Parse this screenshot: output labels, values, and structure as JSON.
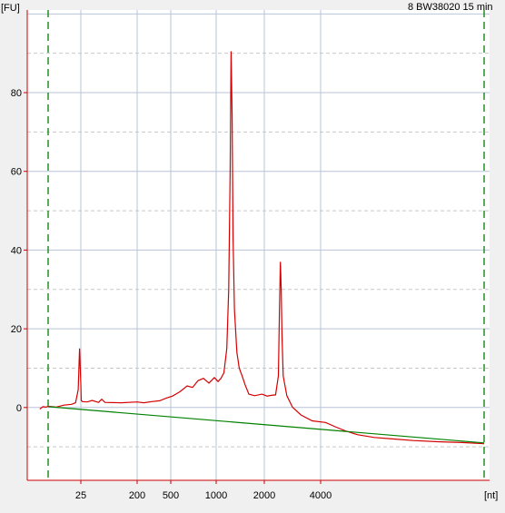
{
  "chart_data": {
    "type": "line",
    "title": "8 BW38020 15 min",
    "ylabel": "[FU]",
    "xlabel": "[nt]",
    "ylim": [
      -18.5,
      101
    ],
    "y_ticks": [
      0,
      20,
      40,
      60,
      80
    ],
    "x_ticks": [
      "25",
      "200",
      "500",
      "1000",
      "2000",
      "4000"
    ],
    "x_tick_values": [
      25,
      200,
      500,
      1000,
      2000,
      4000
    ],
    "grid": true,
    "series": [
      {
        "color": "#d40000",
        "points": [
          [
            -8,
            -0.4
          ],
          [
            -5,
            0.2
          ],
          [
            -2,
            0.1
          ],
          [
            0,
            0.3
          ],
          [
            3,
            0.2
          ],
          [
            6,
            0.1
          ],
          [
            12,
            0.6
          ],
          [
            18,
            0.8
          ],
          [
            21,
            1.2
          ],
          [
            23,
            4.5
          ],
          [
            24,
            15
          ],
          [
            25,
            6
          ],
          [
            26,
            1.8
          ],
          [
            30,
            1.5
          ],
          [
            45,
            1.4
          ],
          [
            60,
            1.8
          ],
          [
            80,
            1.3
          ],
          [
            90,
            2.1
          ],
          [
            100,
            1.3
          ],
          [
            150,
            1.2
          ],
          [
            200,
            1.4
          ],
          [
            260,
            1.2
          ],
          [
            330,
            1.5
          ],
          [
            400,
            1.7
          ],
          [
            460,
            2.4
          ],
          [
            520,
            2.9
          ],
          [
            600,
            4.0
          ],
          [
            680,
            5.5
          ],
          [
            740,
            5.1
          ],
          [
            800,
            6.8
          ],
          [
            860,
            7.4
          ],
          [
            920,
            6.2
          ],
          [
            980,
            7.6
          ],
          [
            1040,
            6.6
          ],
          [
            1100,
            7.4
          ],
          [
            1160,
            8.8
          ],
          [
            1220,
            15
          ],
          [
            1260,
            30
          ],
          [
            1290,
            60
          ],
          [
            1310,
            90.5
          ],
          [
            1330,
            75
          ],
          [
            1350,
            43
          ],
          [
            1380,
            25
          ],
          [
            1430,
            14
          ],
          [
            1480,
            10
          ],
          [
            1540,
            8
          ],
          [
            1600,
            5.8
          ],
          [
            1680,
            3.4
          ],
          [
            1800,
            3.0
          ],
          [
            1950,
            3.4
          ],
          [
            2100,
            2.9
          ],
          [
            2250,
            3.1
          ],
          [
            2400,
            3.2
          ],
          [
            2500,
            8
          ],
          [
            2540,
            25
          ],
          [
            2570,
            37
          ],
          [
            2600,
            30
          ],
          [
            2630,
            18
          ],
          [
            2670,
            8
          ],
          [
            2800,
            3.0
          ],
          [
            3000,
            0.1
          ],
          [
            3300,
            -1.9
          ],
          [
            3700,
            -3.4
          ],
          [
            4200,
            -3.8
          ],
          [
            4600,
            -4.9
          ],
          [
            5000,
            -5.9
          ],
          [
            5500,
            -6.9
          ],
          [
            6200,
            -7.6
          ],
          [
            7000,
            -8.0
          ],
          [
            7800,
            -8.4
          ],
          [
            8800,
            -8.7
          ],
          [
            9800,
            -8.9
          ],
          [
            10700,
            -9.2
          ]
        ]
      },
      {
        "color": "#008000",
        "points": [
          [
            0,
            0.2
          ],
          [
            10700,
            -9.0
          ]
        ]
      }
    ],
    "markers": [
      {
        "x": 0,
        "style": "dashed",
        "color": "#008000"
      },
      {
        "x": 10700,
        "style": "dashed",
        "color": "#008000"
      }
    ]
  }
}
